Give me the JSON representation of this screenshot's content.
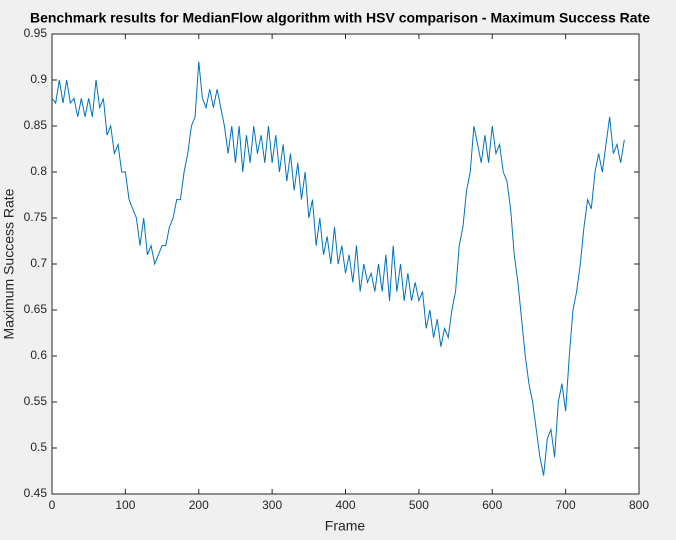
{
  "chart_data": {
    "type": "line",
    "title": "Benchmark results for MedianFlow algorithm with HSV comparison - Maximum Success Rate",
    "x_label": "Frame",
    "y_label": "Maximum Success Rate",
    "x": [
      0,
      5,
      10,
      15,
      20,
      25,
      30,
      35,
      40,
      45,
      50,
      55,
      60,
      65,
      70,
      75,
      80,
      85,
      90,
      95,
      100,
      105,
      110,
      115,
      120,
      125,
      130,
      135,
      140,
      145,
      150,
      155,
      160,
      165,
      170,
      175,
      180,
      185,
      190,
      195,
      200,
      205,
      210,
      215,
      220,
      225,
      230,
      235,
      240,
      245,
      250,
      255,
      260,
      265,
      270,
      275,
      280,
      285,
      290,
      295,
      300,
      305,
      310,
      315,
      320,
      325,
      330,
      335,
      340,
      345,
      350,
      355,
      360,
      365,
      370,
      375,
      380,
      385,
      390,
      395,
      400,
      405,
      410,
      415,
      420,
      425,
      430,
      435,
      440,
      445,
      450,
      455,
      460,
      465,
      470,
      475,
      480,
      485,
      490,
      495,
      500,
      505,
      510,
      515,
      520,
      525,
      530,
      535,
      540,
      545,
      550,
      555,
      560,
      565,
      570,
      575,
      580,
      585,
      590,
      595,
      600,
      605,
      610,
      615,
      620,
      625,
      630,
      635,
      640,
      645,
      650,
      655,
      660,
      665,
      670,
      675,
      680,
      685,
      690,
      695,
      700,
      705,
      710,
      715,
      720,
      725,
      730,
      735,
      740,
      745,
      750,
      755,
      760,
      765,
      770,
      775,
      780
    ],
    "series": [
      {
        "name": "Maximum Success Rate",
        "color": "#0072bd",
        "values": [
          0.88,
          0.875,
          0.9,
          0.875,
          0.9,
          0.875,
          0.88,
          0.86,
          0.88,
          0.86,
          0.88,
          0.86,
          0.9,
          0.87,
          0.88,
          0.84,
          0.85,
          0.82,
          0.83,
          0.8,
          0.8,
          0.77,
          0.76,
          0.75,
          0.72,
          0.75,
          0.71,
          0.72,
          0.7,
          0.71,
          0.72,
          0.72,
          0.74,
          0.75,
          0.77,
          0.77,
          0.8,
          0.82,
          0.85,
          0.86,
          0.92,
          0.88,
          0.87,
          0.89,
          0.87,
          0.89,
          0.87,
          0.85,
          0.82,
          0.85,
          0.81,
          0.85,
          0.8,
          0.84,
          0.81,
          0.85,
          0.82,
          0.84,
          0.81,
          0.85,
          0.81,
          0.84,
          0.8,
          0.83,
          0.79,
          0.82,
          0.78,
          0.81,
          0.77,
          0.8,
          0.75,
          0.77,
          0.72,
          0.75,
          0.71,
          0.73,
          0.7,
          0.74,
          0.7,
          0.72,
          0.69,
          0.71,
          0.68,
          0.72,
          0.67,
          0.7,
          0.68,
          0.69,
          0.67,
          0.7,
          0.67,
          0.71,
          0.66,
          0.72,
          0.67,
          0.7,
          0.66,
          0.69,
          0.66,
          0.68,
          0.66,
          0.67,
          0.63,
          0.65,
          0.62,
          0.64,
          0.61,
          0.63,
          0.62,
          0.65,
          0.67,
          0.72,
          0.74,
          0.78,
          0.8,
          0.85,
          0.83,
          0.81,
          0.84,
          0.81,
          0.85,
          0.82,
          0.83,
          0.8,
          0.79,
          0.76,
          0.71,
          0.68,
          0.64,
          0.6,
          0.57,
          0.55,
          0.52,
          0.49,
          0.47,
          0.51,
          0.52,
          0.49,
          0.55,
          0.57,
          0.54,
          0.6,
          0.65,
          0.67,
          0.7,
          0.74,
          0.77,
          0.76,
          0.8,
          0.82,
          0.8,
          0.83,
          0.86,
          0.82,
          0.83,
          0.81,
          0.835
        ]
      }
    ],
    "xlim": [
      0,
      800
    ],
    "xticks": [
      0,
      100,
      200,
      300,
      400,
      500,
      600,
      700,
      800
    ],
    "ylim": [
      0.45,
      0.95
    ],
    "yticks": [
      0.45,
      0.5,
      0.55,
      0.6,
      0.65,
      0.7,
      0.75,
      0.8,
      0.85,
      0.9,
      0.95
    ],
    "grid": false
  }
}
